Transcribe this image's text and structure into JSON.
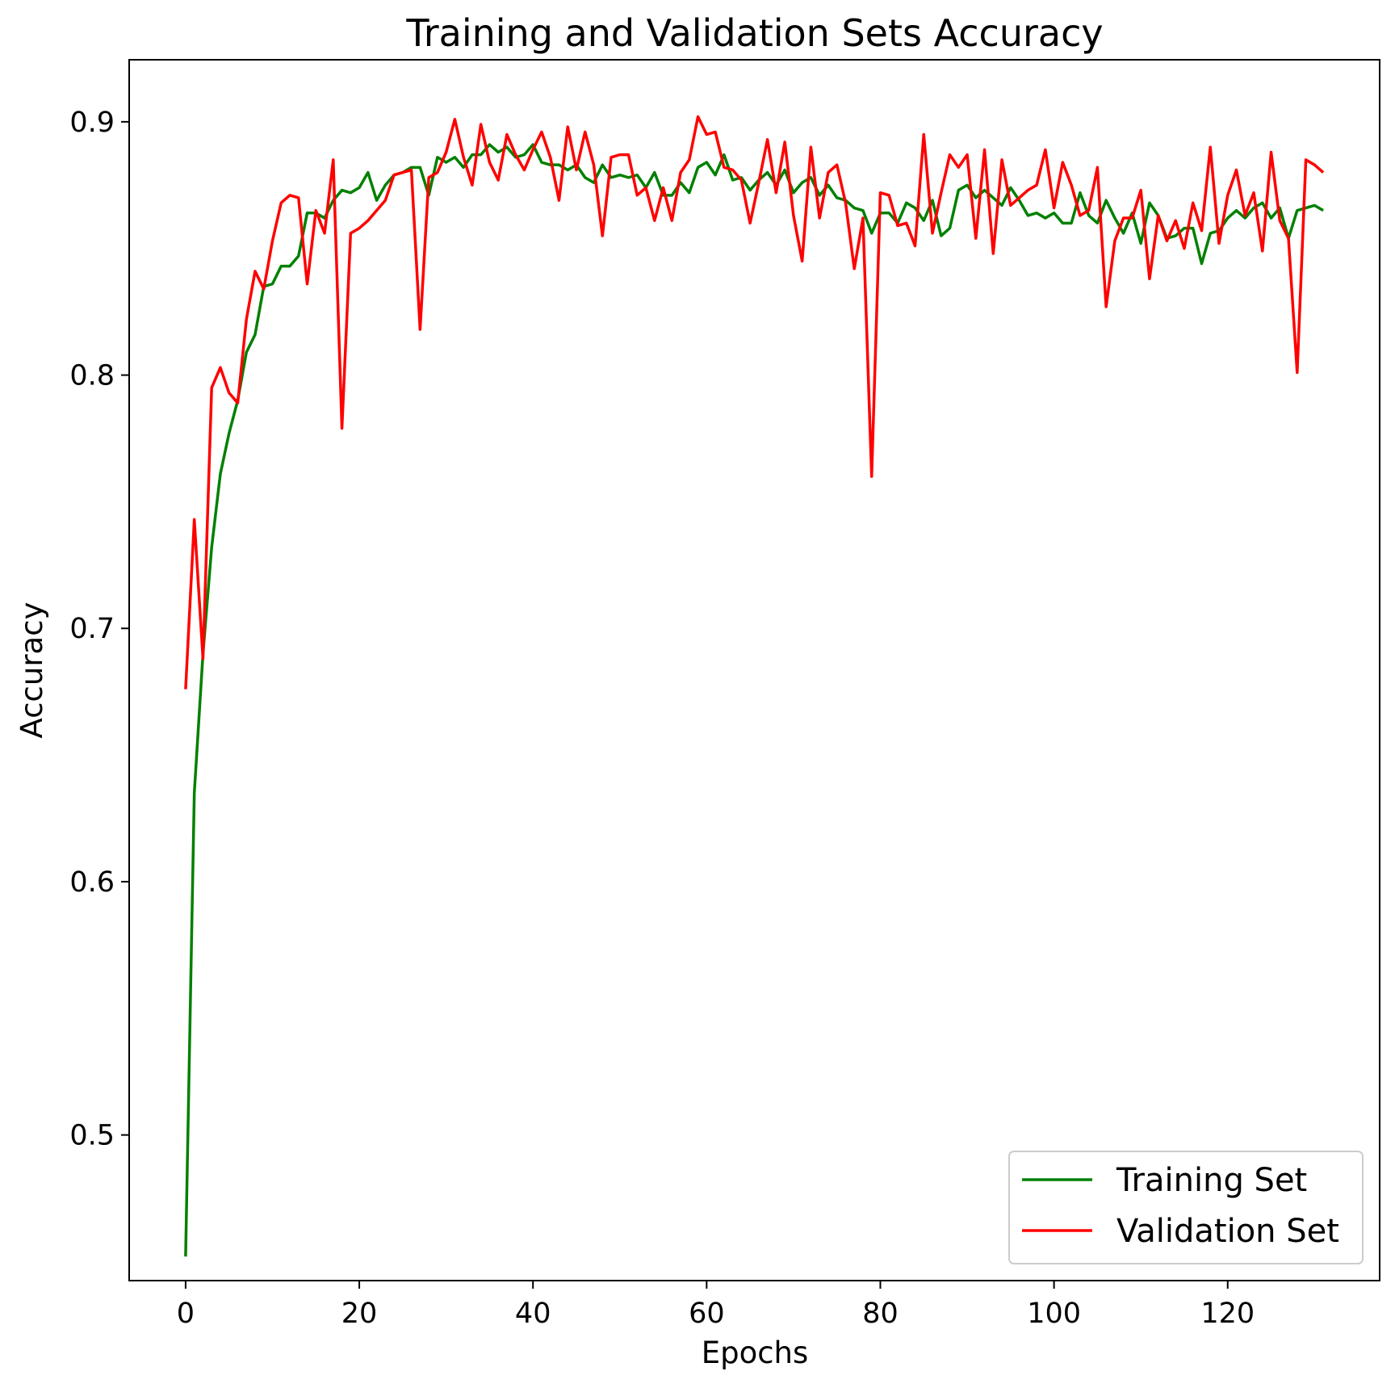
{
  "chart_data": {
    "type": "line",
    "title": "Training and Validation Sets Accuracy",
    "xlabel": "Epochs",
    "ylabel": "Accuracy",
    "xlim": [
      -6.5,
      137.5
    ],
    "ylim": [
      0.4425,
      0.9245
    ],
    "xticks": [
      0,
      20,
      40,
      60,
      80,
      100,
      120
    ],
    "yticks": [
      0.5,
      0.6,
      0.7,
      0.8,
      0.9
    ],
    "grid": false,
    "legend_position": "lower-right",
    "series": [
      {
        "name": "Training Set",
        "color": "#008000",
        "values": [
          0.452,
          0.635,
          0.69,
          0.732,
          0.761,
          0.777,
          0.79,
          0.809,
          0.816,
          0.835,
          0.836,
          0.843,
          0.843,
          0.847,
          0.864,
          0.864,
          0.862,
          0.869,
          0.873,
          0.872,
          0.874,
          0.88,
          0.869,
          0.875,
          0.879,
          0.88,
          0.882,
          0.882,
          0.871,
          0.886,
          0.884,
          0.886,
          0.882,
          0.887,
          0.887,
          0.891,
          0.888,
          0.89,
          0.886,
          0.887,
          0.891,
          0.884,
          0.883,
          0.883,
          0.881,
          0.883,
          0.878,
          0.876,
          0.883,
          0.878,
          0.879,
          0.878,
          0.879,
          0.874,
          0.88,
          0.871,
          0.871,
          0.876,
          0.872,
          0.882,
          0.884,
          0.879,
          0.887,
          0.877,
          0.878,
          0.873,
          0.877,
          0.88,
          0.875,
          0.881,
          0.872,
          0.876,
          0.878,
          0.871,
          0.875,
          0.87,
          0.869,
          0.866,
          0.865,
          0.856,
          0.864,
          0.864,
          0.86,
          0.868,
          0.866,
          0.861,
          0.869,
          0.855,
          0.858,
          0.873,
          0.875,
          0.87,
          0.873,
          0.87,
          0.867,
          0.874,
          0.869,
          0.863,
          0.864,
          0.862,
          0.864,
          0.86,
          0.86,
          0.872,
          0.863,
          0.86,
          0.869,
          0.862,
          0.856,
          0.864,
          0.852,
          0.868,
          0.863,
          0.854,
          0.855,
          0.858,
          0.858,
          0.844,
          0.856,
          0.857,
          0.862,
          0.865,
          0.862,
          0.866,
          0.868,
          0.862,
          0.866,
          0.854,
          0.865,
          0.866,
          0.867,
          0.865
        ]
      },
      {
        "name": "Validation Set",
        "color": "#ff0000",
        "values": [
          0.676,
          0.743,
          0.688,
          0.795,
          0.803,
          0.793,
          0.789,
          0.822,
          0.841,
          0.834,
          0.853,
          0.868,
          0.871,
          0.87,
          0.836,
          0.865,
          0.856,
          0.885,
          0.779,
          0.856,
          0.858,
          0.861,
          0.865,
          0.869,
          0.879,
          0.88,
          0.881,
          0.818,
          0.878,
          0.88,
          0.888,
          0.901,
          0.886,
          0.875,
          0.899,
          0.884,
          0.877,
          0.895,
          0.887,
          0.881,
          0.889,
          0.896,
          0.886,
          0.869,
          0.898,
          0.881,
          0.896,
          0.883,
          0.855,
          0.886,
          0.887,
          0.887,
          0.871,
          0.874,
          0.861,
          0.874,
          0.861,
          0.88,
          0.885,
          0.902,
          0.895,
          0.896,
          0.882,
          0.881,
          0.877,
          0.86,
          0.876,
          0.893,
          0.872,
          0.892,
          0.863,
          0.845,
          0.89,
          0.862,
          0.88,
          0.883,
          0.868,
          0.842,
          0.862,
          0.76,
          0.872,
          0.871,
          0.859,
          0.86,
          0.851,
          0.895,
          0.856,
          0.872,
          0.887,
          0.882,
          0.887,
          0.854,
          0.889,
          0.848,
          0.885,
          0.867,
          0.87,
          0.873,
          0.875,
          0.889,
          0.866,
          0.884,
          0.875,
          0.863,
          0.865,
          0.882,
          0.827,
          0.853,
          0.862,
          0.862,
          0.873,
          0.838,
          0.863,
          0.853,
          0.861,
          0.85,
          0.868,
          0.857,
          0.89,
          0.852,
          0.871,
          0.881,
          0.863,
          0.872,
          0.849,
          0.888,
          0.861,
          0.854,
          0.801,
          0.885,
          0.883,
          0.88
        ]
      }
    ]
  }
}
